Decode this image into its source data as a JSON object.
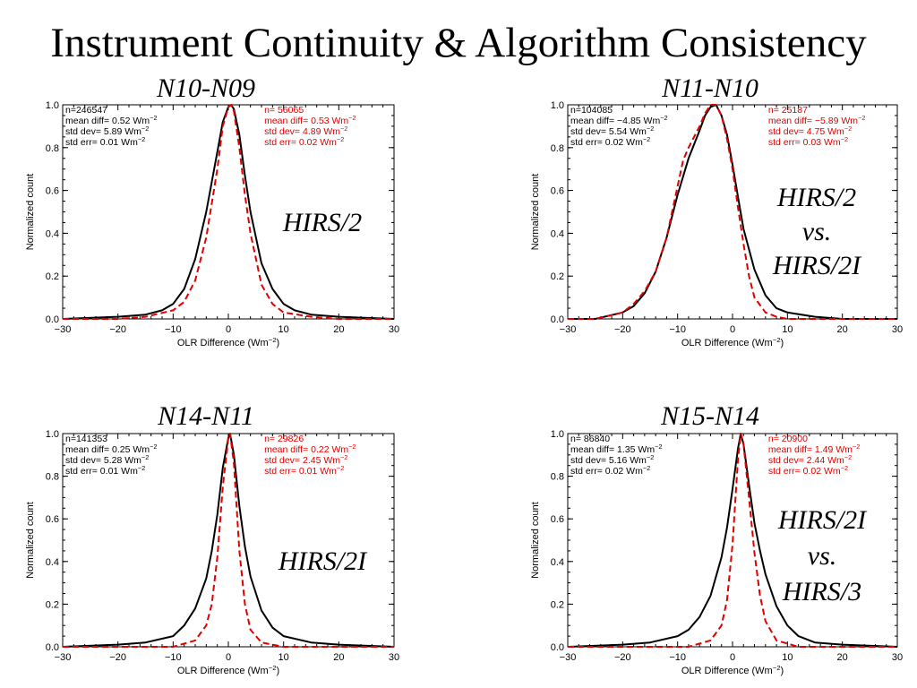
{
  "title": "Instrument Continuity & Algorithm Consistency",
  "colors": {
    "black_curve": "#000000",
    "red_curve": "#e00000",
    "axes": "#000000"
  },
  "chart_data": [
    {
      "type": "line",
      "title": "N10-N09",
      "annotation": [
        "HIRS/2"
      ],
      "xlabel": "OLR Difference (Wm⁻²)",
      "ylabel": "Normalized count",
      "xlim": [
        -30,
        30
      ],
      "ylim": [
        0,
        1
      ],
      "x_ticks": [
        -30,
        -20,
        -10,
        0,
        10,
        20,
        30
      ],
      "y_ticks": [
        0.0,
        0.2,
        0.4,
        0.6,
        0.8,
        1.0
      ],
      "stats_black": [
        "n=246547",
        "mean diff=  0.52 Wm⁻²",
        "std dev=  5.89 Wm⁻²",
        "std err=  0.01 Wm⁻²"
      ],
      "stats_red": [
        "n= 56065",
        "mean diff=  0.53 Wm⁻²",
        "std dev=  4.89 Wm⁻²",
        "std err=  0.02 Wm⁻²"
      ],
      "series": [
        {
          "color": "#000000",
          "dash": false,
          "x": [
            -30,
            -20,
            -15,
            -12,
            -10,
            -8,
            -6,
            -4,
            -2,
            -1,
            0,
            0.5,
            1,
            2,
            3,
            4,
            6,
            8,
            10,
            12,
            15,
            20,
            30
          ],
          "y": [
            0.0,
            0.01,
            0.02,
            0.04,
            0.07,
            0.14,
            0.28,
            0.5,
            0.78,
            0.92,
            0.99,
            1.0,
            0.98,
            0.86,
            0.67,
            0.5,
            0.26,
            0.14,
            0.07,
            0.04,
            0.02,
            0.01,
            0.0
          ]
        },
        {
          "color": "#e00000",
          "dash": true,
          "x": [
            -30,
            -20,
            -15,
            -10,
            -8,
            -6,
            -4,
            -2,
            -1,
            0,
            0.5,
            1,
            2,
            3,
            4,
            6,
            8,
            10,
            15,
            20,
            30
          ],
          "y": [
            0.0,
            0.0,
            0.01,
            0.04,
            0.08,
            0.18,
            0.38,
            0.7,
            0.9,
            0.99,
            1.0,
            0.97,
            0.8,
            0.58,
            0.4,
            0.16,
            0.07,
            0.03,
            0.01,
            0.0,
            0.0
          ]
        }
      ]
    },
    {
      "type": "line",
      "title": "N11-N10",
      "annotation": [
        "HIRS/2",
        "vs.",
        "HIRS/2I"
      ],
      "xlabel": "OLR Difference (Wm⁻²)",
      "ylabel": "Normalized count",
      "xlim": [
        -30,
        30
      ],
      "ylim": [
        0,
        1
      ],
      "x_ticks": [
        -30,
        -20,
        -10,
        0,
        10,
        20,
        30
      ],
      "y_ticks": [
        0.0,
        0.2,
        0.4,
        0.6,
        0.8,
        1.0
      ],
      "stats_black": [
        "n=104085",
        "mean diff= −4.85 Wm⁻²",
        "std dev=  5.54 Wm⁻²",
        "std err=  0.02 Wm⁻²"
      ],
      "stats_red": [
        "n= 25187",
        "mean diff= −5.89 Wm⁻²",
        "std dev=  4.75 Wm⁻²",
        "std err=  0.03 Wm⁻²"
      ],
      "series": [
        {
          "color": "#000000",
          "dash": false,
          "x": [
            -30,
            -25,
            -20,
            -18,
            -16,
            -14,
            -12,
            -10,
            -8,
            -6,
            -5,
            -4,
            -3,
            -2,
            -1,
            0,
            1,
            2,
            4,
            6,
            8,
            10,
            15,
            20,
            30
          ],
          "y": [
            0.0,
            0.0,
            0.03,
            0.06,
            0.12,
            0.22,
            0.38,
            0.58,
            0.75,
            0.88,
            0.95,
            0.99,
            1.0,
            0.95,
            0.86,
            0.72,
            0.57,
            0.42,
            0.23,
            0.11,
            0.05,
            0.03,
            0.01,
            0.0,
            0.0
          ]
        },
        {
          "color": "#e00000",
          "dash": true,
          "x": [
            -30,
            -25,
            -20,
            -18,
            -16,
            -14,
            -12,
            -10,
            -9,
            -8,
            -6,
            -5,
            -4,
            -3,
            -2,
            -1,
            0,
            1,
            2,
            3,
            4,
            6,
            8,
            10,
            30
          ],
          "y": [
            0.0,
            0.0,
            0.03,
            0.07,
            0.13,
            0.22,
            0.38,
            0.62,
            0.74,
            0.8,
            0.9,
            0.96,
            1.0,
            1.0,
            0.95,
            0.84,
            0.7,
            0.52,
            0.35,
            0.2,
            0.1,
            0.03,
            0.01,
            0.0,
            0.0
          ]
        }
      ]
    },
    {
      "type": "line",
      "title": "N14-N11",
      "annotation": [
        "HIRS/2I"
      ],
      "xlabel": "OLR Difference (Wm⁻²)",
      "ylabel": "Normalized count",
      "xlim": [
        -30,
        30
      ],
      "ylim": [
        0,
        1
      ],
      "x_ticks": [
        -30,
        -20,
        -10,
        0,
        10,
        20,
        30
      ],
      "y_ticks": [
        0.0,
        0.2,
        0.4,
        0.6,
        0.8,
        1.0
      ],
      "stats_black": [
        "n=141353",
        "mean diff=  0.25 Wm⁻²",
        "std dev=  5.28 Wm⁻²",
        "std err=  0.01 Wm⁻²"
      ],
      "stats_red": [
        "n= 29826",
        "mean diff=  0.22 Wm⁻²",
        "std dev=  2.45 Wm⁻²",
        "std err=  0.01 Wm⁻²"
      ],
      "series": [
        {
          "color": "#000000",
          "dash": false,
          "x": [
            -30,
            -20,
            -15,
            -10,
            -8,
            -6,
            -4,
            -3,
            -2,
            -1,
            0,
            0.3,
            1,
            2,
            3,
            4,
            6,
            8,
            10,
            15,
            20,
            30
          ],
          "y": [
            0.0,
            0.01,
            0.02,
            0.05,
            0.1,
            0.18,
            0.32,
            0.45,
            0.62,
            0.84,
            0.98,
            1.0,
            0.9,
            0.66,
            0.47,
            0.33,
            0.17,
            0.09,
            0.05,
            0.02,
            0.01,
            0.0
          ]
        },
        {
          "color": "#e00000",
          "dash": true,
          "x": [
            -30,
            -10,
            -6,
            -4,
            -3,
            -2,
            -1,
            0,
            0.3,
            1,
            2,
            3,
            4,
            6,
            10,
            30
          ],
          "y": [
            0.0,
            0.0,
            0.03,
            0.1,
            0.2,
            0.42,
            0.75,
            0.98,
            1.0,
            0.86,
            0.45,
            0.2,
            0.08,
            0.02,
            0.0,
            0.0
          ]
        }
      ]
    },
    {
      "type": "line",
      "title": "N15-N14",
      "annotation": [
        "HIRS/2I",
        "vs.",
        "HIRS/3"
      ],
      "xlabel": "OLR Difference (Wm⁻²)",
      "ylabel": "Normalized count",
      "xlim": [
        -30,
        30
      ],
      "ylim": [
        0,
        1
      ],
      "x_ticks": [
        -30,
        -20,
        -10,
        0,
        10,
        20,
        30
      ],
      "y_ticks": [
        0.0,
        0.2,
        0.4,
        0.6,
        0.8,
        1.0
      ],
      "stats_black": [
        "n= 86840",
        "mean diff=  1.35 Wm⁻²",
        "std dev=  5.16 Wm⁻²",
        "std err=  0.02 Wm⁻²"
      ],
      "stats_red": [
        "n= 20900",
        "mean diff=  1.49 Wm⁻²",
        "std dev=  2.44 Wm⁻²",
        "std err=  0.02 Wm⁻²"
      ],
      "series": [
        {
          "color": "#000000",
          "dash": false,
          "x": [
            -30,
            -20,
            -15,
            -10,
            -8,
            -6,
            -4,
            -2,
            -1,
            0,
            1,
            1.5,
            2,
            3,
            4,
            5,
            6,
            8,
            10,
            12,
            15,
            20,
            30
          ],
          "y": [
            0.0,
            0.01,
            0.02,
            0.05,
            0.08,
            0.14,
            0.24,
            0.42,
            0.56,
            0.74,
            0.93,
            1.0,
            0.95,
            0.76,
            0.58,
            0.45,
            0.34,
            0.19,
            0.1,
            0.05,
            0.02,
            0.01,
            0.0
          ]
        },
        {
          "color": "#e00000",
          "dash": true,
          "x": [
            -30,
            -8,
            -4,
            -2,
            -1,
            0,
            1,
            1.5,
            2,
            3,
            4,
            5,
            6,
            8,
            12,
            30
          ],
          "y": [
            0.0,
            0.0,
            0.03,
            0.1,
            0.22,
            0.48,
            0.88,
            1.0,
            0.95,
            0.7,
            0.44,
            0.24,
            0.12,
            0.03,
            0.0,
            0.0
          ]
        }
      ]
    }
  ]
}
